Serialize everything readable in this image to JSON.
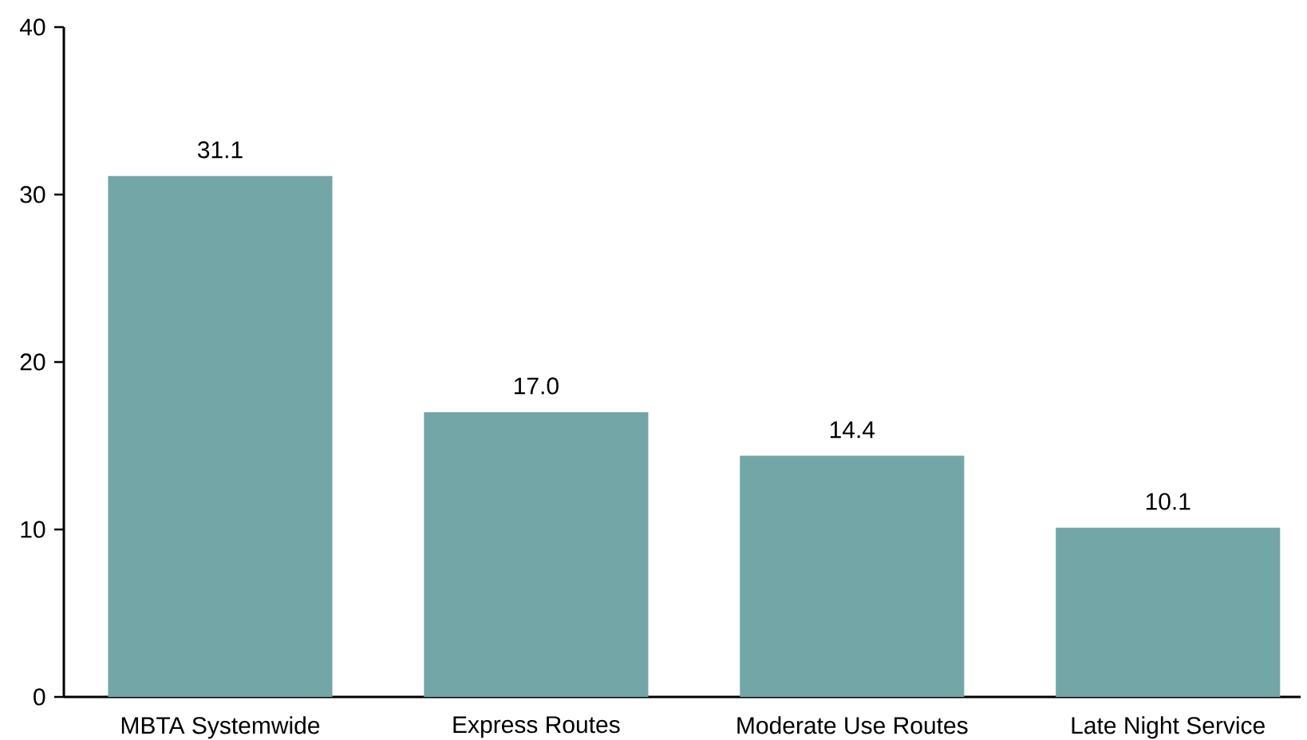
{
  "chart_data": {
    "type": "bar",
    "categories": [
      "MBTA Systemwide",
      "Express Routes",
      "Moderate Use Routes",
      "Late Night Service"
    ],
    "values": [
      31.1,
      17.0,
      14.4,
      10.1
    ],
    "value_labels": [
      "31.1",
      "17.0",
      "14.4",
      "10.1"
    ],
    "color": "#73a6a6",
    "ylim": [
      0,
      40
    ],
    "yticks": [
      0,
      10,
      20,
      30,
      40
    ],
    "grid": false
  }
}
